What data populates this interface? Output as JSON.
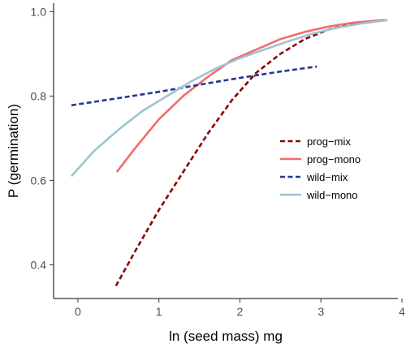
{
  "chart_data": {
    "type": "line",
    "title": "",
    "xlabel": "ln (seed mass) mg",
    "ylabel": "P (germination)",
    "xlim": [
      -0.3,
      3.95
    ],
    "ylim": [
      0.32,
      1.02
    ],
    "xticks": [
      {
        "value": 0,
        "label": "0"
      },
      {
        "value": 1,
        "label": "1"
      },
      {
        "value": 2,
        "label": "2"
      },
      {
        "value": 3,
        "label": "3"
      },
      {
        "value": 4,
        "label": "4"
      }
    ],
    "yticks": [
      {
        "value": 0.4,
        "label": "0.4"
      },
      {
        "value": 0.6,
        "label": "0.6"
      },
      {
        "value": 0.8,
        "label": "0.8"
      },
      {
        "value": 1.0,
        "label": "1.0"
      }
    ],
    "grid": false,
    "legend_position": "right",
    "series": [
      {
        "name": "prog−mix",
        "color": "#8b0000",
        "dash": "dashed",
        "x": [
          0.47,
          0.7,
          1.0,
          1.3,
          1.6,
          1.9,
          2.2,
          2.5,
          2.8,
          3.1,
          3.4,
          3.7,
          3.82
        ],
        "y": [
          0.35,
          0.43,
          0.53,
          0.62,
          0.71,
          0.79,
          0.855,
          0.9,
          0.935,
          0.958,
          0.972,
          0.979,
          0.98
        ]
      },
      {
        "name": "prog−mono",
        "color": "#f26b6b",
        "dash": "solid",
        "x": [
          0.48,
          0.7,
          1.0,
          1.3,
          1.6,
          1.9,
          2.2,
          2.5,
          2.8,
          3.1,
          3.4,
          3.7,
          3.82
        ],
        "y": [
          0.62,
          0.675,
          0.745,
          0.8,
          0.845,
          0.885,
          0.91,
          0.935,
          0.952,
          0.965,
          0.974,
          0.979,
          0.98
        ]
      },
      {
        "name": "wild−mix",
        "color": "#23388f",
        "dash": "dashed",
        "x": [
          -0.08,
          0.5,
          1.0,
          1.5,
          2.0,
          2.5,
          2.95
        ],
        "y": [
          0.778,
          0.795,
          0.81,
          0.827,
          0.843,
          0.858,
          0.87
        ]
      },
      {
        "name": "wild−mono",
        "color": "#9ec2d1",
        "dash": "solid",
        "x": [
          -0.08,
          0.2,
          0.5,
          0.8,
          1.1,
          1.4,
          1.7,
          2.0,
          2.3,
          2.6,
          2.9,
          3.2,
          3.5,
          3.82
        ],
        "y": [
          0.61,
          0.67,
          0.72,
          0.765,
          0.8,
          0.835,
          0.865,
          0.89,
          0.91,
          0.93,
          0.948,
          0.962,
          0.972,
          0.98
        ]
      }
    ]
  }
}
